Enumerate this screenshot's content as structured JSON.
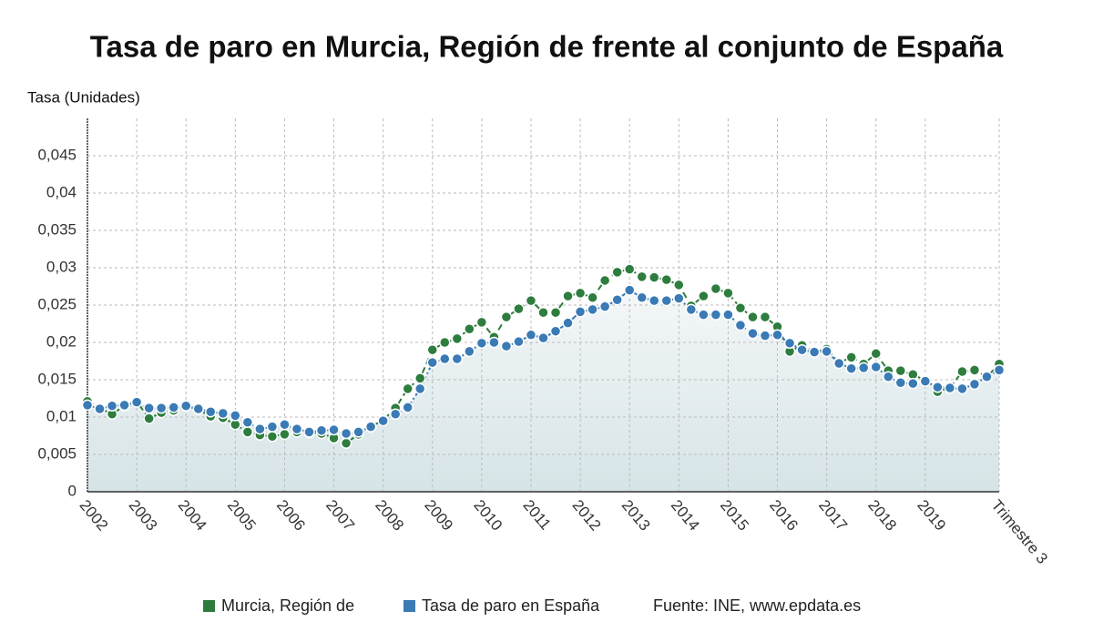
{
  "chart_data": {
    "type": "line",
    "title": "Tasa de paro en Murcia, Región de frente al conjunto de España",
    "y_label": "Tasa (Unidades)",
    "source": "Fuente: INE, www.epdata.es",
    "categories": [
      "2002",
      null,
      null,
      null,
      "2003",
      null,
      null,
      null,
      "2004",
      null,
      null,
      null,
      "2005",
      null,
      null,
      null,
      "2006",
      null,
      null,
      null,
      "2007",
      null,
      null,
      null,
      "2008",
      null,
      null,
      null,
      "2009",
      null,
      null,
      null,
      "2010",
      null,
      null,
      null,
      "2011",
      null,
      null,
      null,
      "2012",
      null,
      null,
      null,
      "2013",
      null,
      null,
      null,
      "2014",
      null,
      null,
      null,
      "2015",
      null,
      null,
      null,
      "2016",
      null,
      null,
      null,
      "2017",
      null,
      null,
      null,
      "2018",
      null,
      null,
      null,
      "2019",
      null,
      null,
      null,
      null,
      null,
      "Trimestre 3"
    ],
    "series": [
      {
        "name": "Murcia, Región de",
        "color": "#2e7d3e",
        "values": [
          0.0121,
          0.0112,
          0.0104,
          0.0115,
          0.0121,
          0.0098,
          0.0106,
          0.0109,
          0.0115,
          0.011,
          0.0101,
          0.0099,
          0.009,
          0.008,
          0.0076,
          0.0074,
          0.0077,
          0.008,
          0.0079,
          0.0078,
          0.0072,
          0.0065,
          0.0077,
          0.0087,
          0.0096,
          0.0112,
          0.0138,
          0.0152,
          0.019,
          0.02,
          0.0205,
          0.0218,
          0.0227,
          0.0207,
          0.0234,
          0.0245,
          0.0256,
          0.024,
          0.024,
          0.0262,
          0.0266,
          0.026,
          0.0283,
          0.0294,
          0.0298,
          0.0288,
          0.0287,
          0.0284,
          0.0277,
          0.0249,
          0.0262,
          0.0272,
          0.0266,
          0.0246,
          0.0234,
          0.0234,
          0.0221,
          0.0188,
          0.0196,
          0.0188,
          0.0191,
          0.0173,
          0.018,
          0.0171,
          0.0185,
          0.0162,
          0.0162,
          0.0157,
          0.0149,
          0.0134,
          0.0139,
          0.0161,
          0.0163,
          0.0154,
          0.0171
        ]
      },
      {
        "name": "Tasa de paro en España",
        "color": "#3a7ab5",
        "values": [
          0.0116,
          0.0111,
          0.0115,
          0.0116,
          0.012,
          0.0112,
          0.0112,
          0.0113,
          0.0115,
          0.0111,
          0.0107,
          0.0105,
          0.0102,
          0.0093,
          0.0084,
          0.0087,
          0.009,
          0.0084,
          0.008,
          0.0082,
          0.0083,
          0.0078,
          0.008,
          0.0087,
          0.0095,
          0.0104,
          0.0113,
          0.0138,
          0.0173,
          0.0178,
          0.0178,
          0.0188,
          0.0199,
          0.02,
          0.0195,
          0.0201,
          0.021,
          0.0206,
          0.0215,
          0.0226,
          0.0241,
          0.0244,
          0.0248,
          0.0257,
          0.027,
          0.026,
          0.0256,
          0.0256,
          0.0259,
          0.0244,
          0.0237,
          0.0237,
          0.0237,
          0.0223,
          0.0212,
          0.0209,
          0.021,
          0.0199,
          0.019,
          0.0187,
          0.0188,
          0.0172,
          0.0165,
          0.0166,
          0.0167,
          0.0154,
          0.0146,
          0.0145,
          0.0148,
          0.014,
          0.0139,
          0.0138,
          0.0144,
          0.0154,
          0.0163
        ]
      }
    ],
    "ylim": [
      0,
      0.05
    ],
    "yticks": [
      0,
      {
        "value": 0.005,
        "label": "0,005"
      },
      {
        "value": 0.01,
        "label": "0,01"
      },
      {
        "value": 0.015,
        "label": "0,015"
      },
      {
        "value": 0.02,
        "label": "0,02"
      },
      {
        "value": 0.025,
        "label": "0,025"
      },
      {
        "value": 0.03,
        "label": "0,03"
      },
      {
        "value": 0.035,
        "label": "0,035"
      },
      {
        "value": 0.04,
        "label": "0,04"
      },
      {
        "value": 0.045,
        "label": "0,045"
      }
    ],
    "grid": true
  }
}
